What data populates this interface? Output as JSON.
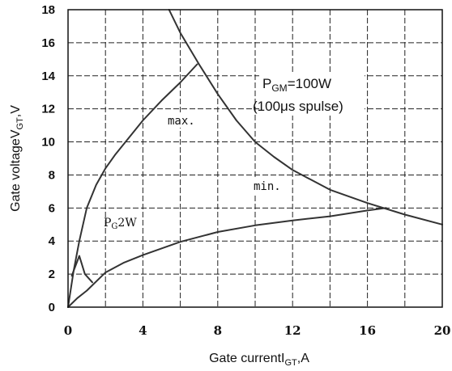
{
  "chart_data": {
    "type": "line",
    "title": "",
    "xlabel": "Gate currentI",
    "xlabel_sub": "GT",
    "xlabel_tail": ",A",
    "ylabel": "Gate voltageV",
    "ylabel_sub": "GT",
    "ylabel_tail": ",V",
    "xlim": [
      0,
      20
    ],
    "ylim": [
      0,
      18
    ],
    "xticks": [
      0,
      4,
      8,
      12,
      16,
      20
    ],
    "yticks": [
      0,
      2,
      4,
      6,
      8,
      10,
      12,
      14,
      16,
      18
    ],
    "xtick_labels": [
      "0",
      "4",
      "8",
      "12",
      "16",
      "20"
    ],
    "ytick_labels": [
      "0",
      "2",
      "4",
      "6",
      "8",
      "10",
      "12",
      "14",
      "16",
      "18"
    ],
    "grid": true,
    "series": [
      {
        "name": "max.",
        "x": [
          0,
          0.3,
          0.6,
          1.0,
          1.5,
          2.0,
          2.5,
          3.0,
          4.0,
          5.0,
          6.0,
          6.9
        ],
        "y": [
          0,
          2.2,
          4.0,
          6.0,
          7.4,
          8.4,
          9.2,
          9.9,
          11.3,
          12.5,
          13.6,
          14.7
        ]
      },
      {
        "name": "min.",
        "x": [
          0,
          0.5,
          1.0,
          2.0,
          3.0,
          4.0,
          6.0,
          8.0,
          10.0,
          12.0,
          14.0,
          16.0,
          17.0
        ],
        "y": [
          0,
          0.55,
          1.0,
          2.1,
          2.7,
          3.15,
          3.95,
          4.55,
          4.95,
          5.25,
          5.5,
          5.85,
          6.0
        ]
      },
      {
        "name": "PGM=100W",
        "x": [
          5.4,
          6.0,
          7.0,
          8.0,
          9.0,
          10.0,
          11.0,
          12.0,
          14.0,
          16.0,
          18.0,
          20.0
        ],
        "y": [
          18.0,
          16.6,
          14.7,
          12.9,
          11.3,
          10.0,
          9.1,
          8.3,
          7.1,
          6.3,
          5.6,
          5.0
        ]
      },
      {
        "name": "PG2W",
        "x": [
          0.2,
          0.6,
          0.9,
          1.3
        ],
        "y": [
          1.9,
          3.1,
          2.0,
          1.5
        ]
      }
    ],
    "annotations": {
      "pgm_label": "P",
      "pgm_sub": "GM",
      "pgm_rest": "=100W",
      "pulse_label": "(100μs spulse)",
      "max_label": "max.",
      "min_label": "min.",
      "pg_label": "P",
      "pg_sub": "G",
      "pg_rest": "2W"
    }
  }
}
